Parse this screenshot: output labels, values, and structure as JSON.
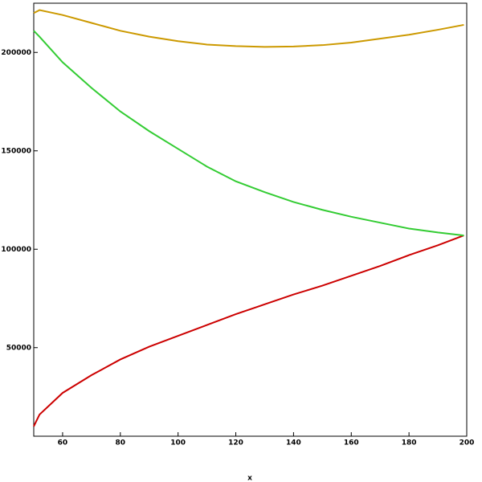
{
  "chart_data": {
    "type": "line",
    "x_label": "x",
    "x": [
      50,
      52,
      60,
      70,
      80,
      90,
      100,
      110,
      120,
      130,
      140,
      150,
      160,
      170,
      180,
      190,
      199
    ],
    "series": [
      {
        "color": "#cc0000",
        "values": [
          10000,
          16000,
          27000,
          36000,
          44000,
          50500,
          56000,
          61500,
          67000,
          72000,
          77000,
          81500,
          86500,
          91500,
          97000,
          102000,
          107000
        ]
      },
      {
        "color": "#33cc33",
        "values": [
          211000,
          208000,
          195000,
          182000,
          170000,
          160000,
          151000,
          142000,
          134500,
          129000,
          124000,
          120000,
          116500,
          113500,
          110500,
          108500,
          107000
        ]
      },
      {
        "color": "#cc9900",
        "values": [
          220000,
          221500,
          219000,
          215000,
          211000,
          208000,
          205700,
          204000,
          203200,
          202800,
          203000,
          203700,
          205000,
          207000,
          209000,
          211500,
          214000
        ]
      }
    ],
    "xlim": [
      50,
      200
    ],
    "xticks": [
      60,
      80,
      100,
      120,
      140,
      160,
      180,
      200
    ],
    "ylim": [
      5000,
      225000
    ],
    "yticks": [
      50000,
      100000,
      150000,
      200000
    ]
  }
}
